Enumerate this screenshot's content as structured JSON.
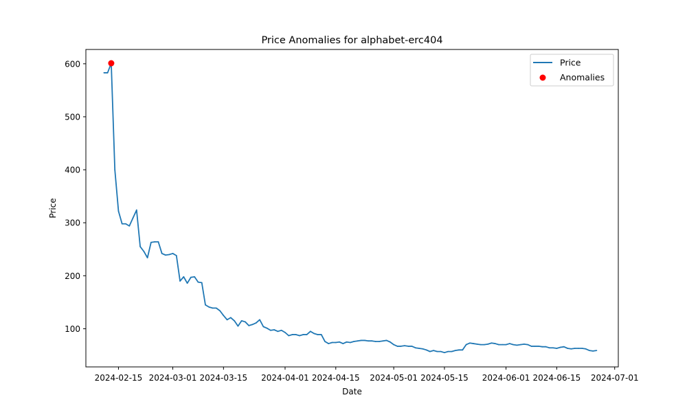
{
  "chart_data": {
    "type": "line",
    "title": "Price Anomalies for alphabet-erc404",
    "xlabel": "Date",
    "ylabel": "Price",
    "x_range": [
      "2024-02-06",
      "2024-07-02"
    ],
    "ylim": [
      28,
      627
    ],
    "x_ticks": [
      "2024-02-15",
      "2024-03-01",
      "2024-03-15",
      "2024-04-01",
      "2024-04-15",
      "2024-05-01",
      "2024-05-15",
      "2024-06-01",
      "2024-06-15",
      "2024-07-01"
    ],
    "y_ticks": [
      100,
      200,
      300,
      400,
      500,
      600
    ],
    "grid": false,
    "legend": {
      "location": "upper right",
      "entries": [
        "Price",
        "Anomalies"
      ]
    },
    "series": [
      {
        "name": "Price",
        "style": "line",
        "color": "#1f77b4",
        "points": [
          [
            "2024-02-11",
            583
          ],
          [
            "2024-02-12",
            583
          ],
          [
            "2024-02-13",
            601
          ],
          [
            "2024-02-14",
            400
          ],
          [
            "2024-02-15",
            322
          ],
          [
            "2024-02-16",
            298
          ],
          [
            "2024-02-17",
            298
          ],
          [
            "2024-02-18",
            294
          ],
          [
            "2024-02-19",
            309
          ],
          [
            "2024-02-20",
            324
          ],
          [
            "2024-02-21",
            255
          ],
          [
            "2024-02-22",
            246
          ],
          [
            "2024-02-23",
            234
          ],
          [
            "2024-02-24",
            263
          ],
          [
            "2024-02-25",
            264
          ],
          [
            "2024-02-26",
            264
          ],
          [
            "2024-02-27",
            242
          ],
          [
            "2024-02-28",
            239
          ],
          [
            "2024-02-29",
            240
          ],
          [
            "2024-03-01",
            242
          ],
          [
            "2024-03-02",
            238
          ],
          [
            "2024-03-03",
            190
          ],
          [
            "2024-03-04",
            198
          ],
          [
            "2024-03-05",
            186
          ],
          [
            "2024-03-06",
            197
          ],
          [
            "2024-03-07",
            198
          ],
          [
            "2024-03-08",
            188
          ],
          [
            "2024-03-09",
            187
          ],
          [
            "2024-03-10",
            145
          ],
          [
            "2024-03-11",
            141
          ],
          [
            "2024-03-12",
            139
          ],
          [
            "2024-03-13",
            139
          ],
          [
            "2024-03-14",
            134
          ],
          [
            "2024-03-15",
            125
          ],
          [
            "2024-03-16",
            117
          ],
          [
            "2024-03-17",
            121
          ],
          [
            "2024-03-18",
            115
          ],
          [
            "2024-03-19",
            105
          ],
          [
            "2024-03-20",
            115
          ],
          [
            "2024-03-21",
            113
          ],
          [
            "2024-03-22",
            106
          ],
          [
            "2024-03-23",
            108
          ],
          [
            "2024-03-24",
            111
          ],
          [
            "2024-03-25",
            117
          ],
          [
            "2024-03-26",
            104
          ],
          [
            "2024-03-27",
            101
          ],
          [
            "2024-03-28",
            97
          ],
          [
            "2024-03-29",
            98
          ],
          [
            "2024-03-30",
            95
          ],
          [
            "2024-03-31",
            97
          ],
          [
            "2024-04-01",
            93
          ],
          [
            "2024-04-02",
            87
          ],
          [
            "2024-04-03",
            89
          ],
          [
            "2024-04-04",
            89
          ],
          [
            "2024-04-05",
            87
          ],
          [
            "2024-04-06",
            89
          ],
          [
            "2024-04-07",
            89
          ],
          [
            "2024-04-08",
            95
          ],
          [
            "2024-04-09",
            91
          ],
          [
            "2024-04-10",
            89
          ],
          [
            "2024-04-11",
            89
          ],
          [
            "2024-04-12",
            76
          ],
          [
            "2024-04-13",
            72
          ],
          [
            "2024-04-14",
            74
          ],
          [
            "2024-04-15",
            74
          ],
          [
            "2024-04-16",
            75
          ],
          [
            "2024-04-17",
            72
          ],
          [
            "2024-04-18",
            75
          ],
          [
            "2024-04-19",
            74
          ],
          [
            "2024-04-20",
            76
          ],
          [
            "2024-04-21",
            77
          ],
          [
            "2024-04-22",
            78
          ],
          [
            "2024-04-23",
            78
          ],
          [
            "2024-04-24",
            77
          ],
          [
            "2024-04-25",
            77
          ],
          [
            "2024-04-26",
            76
          ],
          [
            "2024-04-27",
            76
          ],
          [
            "2024-04-28",
            77
          ],
          [
            "2024-04-29",
            78
          ],
          [
            "2024-04-30",
            75
          ],
          [
            "2024-05-01",
            70
          ],
          [
            "2024-05-02",
            67
          ],
          [
            "2024-05-03",
            67
          ],
          [
            "2024-05-04",
            68
          ],
          [
            "2024-05-05",
            67
          ],
          [
            "2024-05-06",
            67
          ],
          [
            "2024-05-07",
            64
          ],
          [
            "2024-05-08",
            63
          ],
          [
            "2024-05-09",
            62
          ],
          [
            "2024-05-10",
            60
          ],
          [
            "2024-05-11",
            57
          ],
          [
            "2024-05-12",
            59
          ],
          [
            "2024-05-13",
            57
          ],
          [
            "2024-05-14",
            57
          ],
          [
            "2024-05-15",
            55
          ],
          [
            "2024-05-16",
            57
          ],
          [
            "2024-05-17",
            57
          ],
          [
            "2024-05-18",
            59
          ],
          [
            "2024-05-19",
            60
          ],
          [
            "2024-05-20",
            60
          ],
          [
            "2024-05-21",
            70
          ],
          [
            "2024-05-22",
            73
          ],
          [
            "2024-05-23",
            72
          ],
          [
            "2024-05-24",
            71
          ],
          [
            "2024-05-25",
            70
          ],
          [
            "2024-05-26",
            70
          ],
          [
            "2024-05-27",
            71
          ],
          [
            "2024-05-28",
            73
          ],
          [
            "2024-05-29",
            72
          ],
          [
            "2024-05-30",
            70
          ],
          [
            "2024-05-31",
            70
          ],
          [
            "2024-06-01",
            70
          ],
          [
            "2024-06-02",
            72
          ],
          [
            "2024-06-03",
            70
          ],
          [
            "2024-06-04",
            69
          ],
          [
            "2024-06-05",
            70
          ],
          [
            "2024-06-06",
            71
          ],
          [
            "2024-06-07",
            70
          ],
          [
            "2024-06-08",
            67
          ],
          [
            "2024-06-09",
            67
          ],
          [
            "2024-06-10",
            67
          ],
          [
            "2024-06-11",
            66
          ],
          [
            "2024-06-12",
            66
          ],
          [
            "2024-06-13",
            64
          ],
          [
            "2024-06-14",
            64
          ],
          [
            "2024-06-15",
            63
          ],
          [
            "2024-06-16",
            65
          ],
          [
            "2024-06-17",
            66
          ],
          [
            "2024-06-18",
            63
          ],
          [
            "2024-06-19",
            62
          ],
          [
            "2024-06-20",
            63
          ],
          [
            "2024-06-21",
            63
          ],
          [
            "2024-06-22",
            63
          ],
          [
            "2024-06-23",
            62
          ],
          [
            "2024-06-24",
            59
          ],
          [
            "2024-06-25",
            58
          ],
          [
            "2024-06-26",
            59
          ]
        ]
      },
      {
        "name": "Anomalies",
        "style": "scatter",
        "color": "#ff0000",
        "points": [
          [
            "2024-02-13",
            601
          ]
        ]
      }
    ]
  }
}
